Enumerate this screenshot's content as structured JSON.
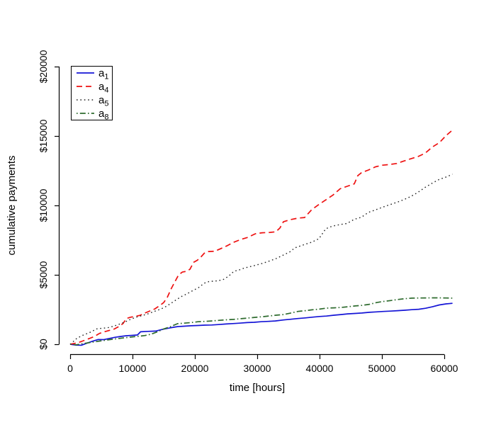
{
  "figure": {
    "background": "#ffffff",
    "axis_color": "#000000"
  },
  "chart_data": {
    "type": "line",
    "title": "",
    "xlabel": "time [hours]",
    "ylabel": "cumulative payments",
    "xlim": [
      0,
      61320
    ],
    "ylim": [
      0,
      20000
    ],
    "grid": false,
    "x_ticks": {
      "values": [
        0,
        10000,
        20000,
        30000,
        40000,
        50000,
        60000
      ],
      "labels": [
        "0",
        "10000",
        "20000",
        "30000",
        "40000",
        "50000",
        "60000"
      ]
    },
    "y_ticks": {
      "values": [
        0,
        5000,
        10000,
        15000,
        20000
      ],
      "labels": [
        "$0",
        "$5000",
        "$10000",
        "$15000",
        "$20000"
      ]
    },
    "legend": {
      "position": "top-left",
      "border": true,
      "items": [
        {
          "base": "a",
          "sub": "1",
          "style": "solid",
          "color": "#1414d6"
        },
        {
          "base": "a",
          "sub": "4",
          "style": "dashed",
          "color": "#ee1111"
        },
        {
          "base": "a",
          "sub": "5",
          "style": "dotted",
          "color": "#222222"
        },
        {
          "base": "a",
          "sub": "8",
          "style": "dashdot",
          "color": "#2e6b2e"
        }
      ]
    },
    "series": [
      {
        "name": "a1",
        "color": "#1414d6",
        "style": "solid",
        "points": [
          [
            0,
            0
          ],
          [
            900,
            -60
          ],
          [
            1800,
            -70
          ],
          [
            2700,
            80
          ],
          [
            3600,
            220
          ],
          [
            4500,
            340
          ],
          [
            5400,
            330
          ],
          [
            6300,
            420
          ],
          [
            7200,
            500
          ],
          [
            8100,
            560
          ],
          [
            9000,
            610
          ],
          [
            9900,
            640
          ],
          [
            10800,
            670
          ],
          [
            11300,
            900
          ],
          [
            12500,
            930
          ],
          [
            13700,
            950
          ],
          [
            14900,
            1080
          ],
          [
            16000,
            1180
          ],
          [
            17200,
            1270
          ],
          [
            18300,
            1300
          ],
          [
            19400,
            1330
          ],
          [
            20500,
            1350
          ],
          [
            21600,
            1380
          ],
          [
            22700,
            1390
          ],
          [
            23800,
            1420
          ],
          [
            25000,
            1460
          ],
          [
            26100,
            1490
          ],
          [
            27200,
            1520
          ],
          [
            28400,
            1560
          ],
          [
            29500,
            1580
          ],
          [
            30600,
            1620
          ],
          [
            31800,
            1650
          ],
          [
            32900,
            1680
          ],
          [
            34200,
            1750
          ],
          [
            35400,
            1800
          ],
          [
            36500,
            1850
          ],
          [
            37700,
            1900
          ],
          [
            38800,
            1950
          ],
          [
            40000,
            2000
          ],
          [
            41100,
            2030
          ],
          [
            42300,
            2090
          ],
          [
            43400,
            2140
          ],
          [
            44500,
            2190
          ],
          [
            45700,
            2220
          ],
          [
            46800,
            2250
          ],
          [
            48000,
            2300
          ],
          [
            49100,
            2330
          ],
          [
            50200,
            2360
          ],
          [
            51400,
            2390
          ],
          [
            52500,
            2420
          ],
          [
            53600,
            2450
          ],
          [
            54800,
            2490
          ],
          [
            55900,
            2520
          ],
          [
            57000,
            2590
          ],
          [
            58100,
            2700
          ],
          [
            59200,
            2830
          ],
          [
            60300,
            2910
          ],
          [
            61320,
            2950
          ]
        ]
      },
      {
        "name": "a4",
        "color": "#ee1111",
        "style": "dashed",
        "points": [
          [
            0,
            0
          ],
          [
            700,
            60
          ],
          [
            1500,
            150
          ],
          [
            2300,
            280
          ],
          [
            3100,
            420
          ],
          [
            3900,
            560
          ],
          [
            4700,
            780
          ],
          [
            5500,
            900
          ],
          [
            6300,
            1000
          ],
          [
            7100,
            1100
          ],
          [
            7900,
            1300
          ],
          [
            8500,
            1500
          ],
          [
            9000,
            1850
          ],
          [
            9700,
            1950
          ],
          [
            10400,
            2000
          ],
          [
            11200,
            2080
          ],
          [
            12000,
            2250
          ],
          [
            12800,
            2400
          ],
          [
            13600,
            2550
          ],
          [
            14400,
            2800
          ],
          [
            15000,
            3000
          ],
          [
            15600,
            3400
          ],
          [
            16200,
            4000
          ],
          [
            16800,
            4500
          ],
          [
            17400,
            5000
          ],
          [
            18000,
            5200
          ],
          [
            18600,
            5250
          ],
          [
            19200,
            5400
          ],
          [
            19800,
            5900
          ],
          [
            20400,
            6050
          ],
          [
            21000,
            6300
          ],
          [
            21600,
            6600
          ],
          [
            22200,
            6680
          ],
          [
            23200,
            6700
          ],
          [
            24200,
            6900
          ],
          [
            25200,
            7100
          ],
          [
            26250,
            7350
          ],
          [
            27400,
            7550
          ],
          [
            28500,
            7700
          ],
          [
            29700,
            7960
          ],
          [
            30800,
            8030
          ],
          [
            32000,
            8050
          ],
          [
            33000,
            8100
          ],
          [
            33640,
            8370
          ],
          [
            34200,
            8820
          ],
          [
            35340,
            8980
          ],
          [
            36500,
            9080
          ],
          [
            37600,
            9130
          ],
          [
            38750,
            9700
          ],
          [
            40000,
            10100
          ],
          [
            41000,
            10400
          ],
          [
            42160,
            10750
          ],
          [
            43300,
            11200
          ],
          [
            44430,
            11380
          ],
          [
            45570,
            11550
          ],
          [
            46140,
            12150
          ],
          [
            46700,
            12350
          ],
          [
            47840,
            12550
          ],
          [
            48980,
            12780
          ],
          [
            50110,
            12900
          ],
          [
            51250,
            12950
          ],
          [
            52380,
            13020
          ],
          [
            53520,
            13200
          ],
          [
            54660,
            13360
          ],
          [
            55800,
            13520
          ],
          [
            56930,
            13760
          ],
          [
            58070,
            14200
          ],
          [
            59200,
            14520
          ],
          [
            60340,
            15050
          ],
          [
            61320,
            15430
          ]
        ]
      },
      {
        "name": "a5",
        "color": "#222222",
        "style": "dotted",
        "points": [
          [
            0,
            0
          ],
          [
            400,
            150
          ],
          [
            1000,
            400
          ],
          [
            1800,
            600
          ],
          [
            2600,
            750
          ],
          [
            3400,
            900
          ],
          [
            4200,
            1100
          ],
          [
            5000,
            1150
          ],
          [
            6000,
            1190
          ],
          [
            7000,
            1300
          ],
          [
            7900,
            1450
          ],
          [
            8800,
            1600
          ],
          [
            9700,
            1800
          ],
          [
            10600,
            1950
          ],
          [
            11500,
            2060
          ],
          [
            12400,
            2180
          ],
          [
            13300,
            2330
          ],
          [
            14200,
            2480
          ],
          [
            15100,
            2650
          ],
          [
            16000,
            2900
          ],
          [
            17000,
            3200
          ],
          [
            17900,
            3450
          ],
          [
            18800,
            3650
          ],
          [
            19700,
            3870
          ],
          [
            20600,
            4080
          ],
          [
            21500,
            4400
          ],
          [
            22300,
            4520
          ],
          [
            23500,
            4560
          ],
          [
            24500,
            4650
          ],
          [
            25400,
            4900
          ],
          [
            26250,
            5250
          ],
          [
            27100,
            5350
          ],
          [
            28000,
            5500
          ],
          [
            29400,
            5650
          ],
          [
            30800,
            5820
          ],
          [
            32000,
            6000
          ],
          [
            33000,
            6170
          ],
          [
            34200,
            6430
          ],
          [
            35340,
            6680
          ],
          [
            36000,
            6940
          ],
          [
            37000,
            7090
          ],
          [
            37600,
            7190
          ],
          [
            38750,
            7350
          ],
          [
            39900,
            7600
          ],
          [
            41000,
            8320
          ],
          [
            42000,
            8500
          ],
          [
            43300,
            8620
          ],
          [
            44400,
            8700
          ],
          [
            45570,
            9000
          ],
          [
            46700,
            9150
          ],
          [
            47840,
            9500
          ],
          [
            48980,
            9680
          ],
          [
            50110,
            9870
          ],
          [
            51250,
            10050
          ],
          [
            52380,
            10220
          ],
          [
            53520,
            10420
          ],
          [
            54660,
            10650
          ],
          [
            55800,
            10950
          ],
          [
            56930,
            11300
          ],
          [
            58070,
            11600
          ],
          [
            59200,
            11880
          ],
          [
            60340,
            12050
          ],
          [
            61320,
            12250
          ]
        ]
      },
      {
        "name": "a8",
        "color": "#2e6b2e",
        "style": "dashdot",
        "points": [
          [
            0,
            0
          ],
          [
            1000,
            -40
          ],
          [
            2000,
            40
          ],
          [
            3000,
            110
          ],
          [
            4000,
            180
          ],
          [
            5000,
            250
          ],
          [
            6000,
            310
          ],
          [
            7000,
            370
          ],
          [
            8000,
            430
          ],
          [
            9000,
            480
          ],
          [
            10000,
            530
          ],
          [
            11000,
            575
          ],
          [
            12000,
            630
          ],
          [
            13000,
            730
          ],
          [
            14000,
            900
          ],
          [
            15000,
            1100
          ],
          [
            16000,
            1250
          ],
          [
            17200,
            1480
          ],
          [
            18300,
            1520
          ],
          [
            19400,
            1560
          ],
          [
            20500,
            1620
          ],
          [
            21600,
            1650
          ],
          [
            22700,
            1680
          ],
          [
            23800,
            1720
          ],
          [
            25000,
            1760
          ],
          [
            26250,
            1790
          ],
          [
            27400,
            1840
          ],
          [
            28500,
            1890
          ],
          [
            29700,
            1940
          ],
          [
            31000,
            1990
          ],
          [
            32000,
            2040
          ],
          [
            33000,
            2090
          ],
          [
            34200,
            2140
          ],
          [
            35400,
            2250
          ],
          [
            36500,
            2360
          ],
          [
            37700,
            2420
          ],
          [
            38800,
            2480
          ],
          [
            40000,
            2530
          ],
          [
            41100,
            2600
          ],
          [
            42300,
            2620
          ],
          [
            43400,
            2650
          ],
          [
            44500,
            2700
          ],
          [
            45700,
            2760
          ],
          [
            46800,
            2800
          ],
          [
            48000,
            2880
          ],
          [
            49100,
            3000
          ],
          [
            50200,
            3080
          ],
          [
            51400,
            3150
          ],
          [
            52500,
            3220
          ],
          [
            53600,
            3280
          ],
          [
            54800,
            3320
          ],
          [
            55900,
            3330
          ],
          [
            57000,
            3335
          ],
          [
            58100,
            3340
          ],
          [
            59200,
            3340
          ],
          [
            60300,
            3330
          ],
          [
            61320,
            3320
          ]
        ]
      }
    ]
  }
}
